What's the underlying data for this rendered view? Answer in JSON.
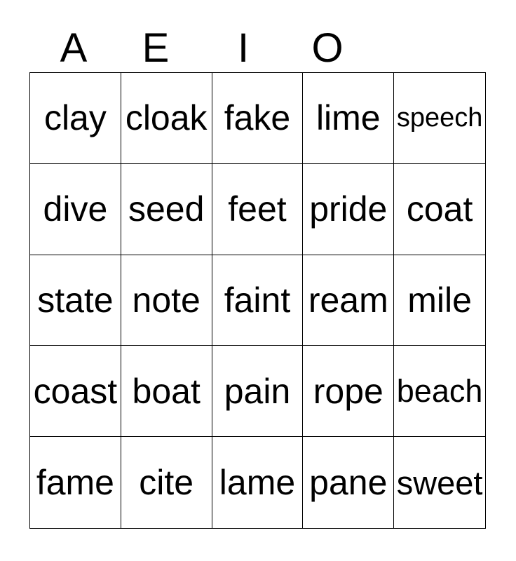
{
  "card": {
    "header": {
      "letters": [
        "A",
        "E",
        "I",
        "O"
      ]
    },
    "grid": {
      "rows": [
        [
          "clay",
          "cloak",
          "fake",
          "lime",
          "speech"
        ],
        [
          "dive",
          "seed",
          "feet",
          "pride",
          "coat"
        ],
        [
          "state",
          "note",
          "faint",
          "ream",
          "mile"
        ],
        [
          "coast",
          "boat",
          "pain",
          "rope",
          "beach"
        ],
        [
          "fame",
          "cite",
          "lame",
          "pane",
          "sweet"
        ]
      ]
    },
    "colors": {
      "text": "#000000",
      "border": "#000000",
      "background": "#ffffff"
    }
  }
}
